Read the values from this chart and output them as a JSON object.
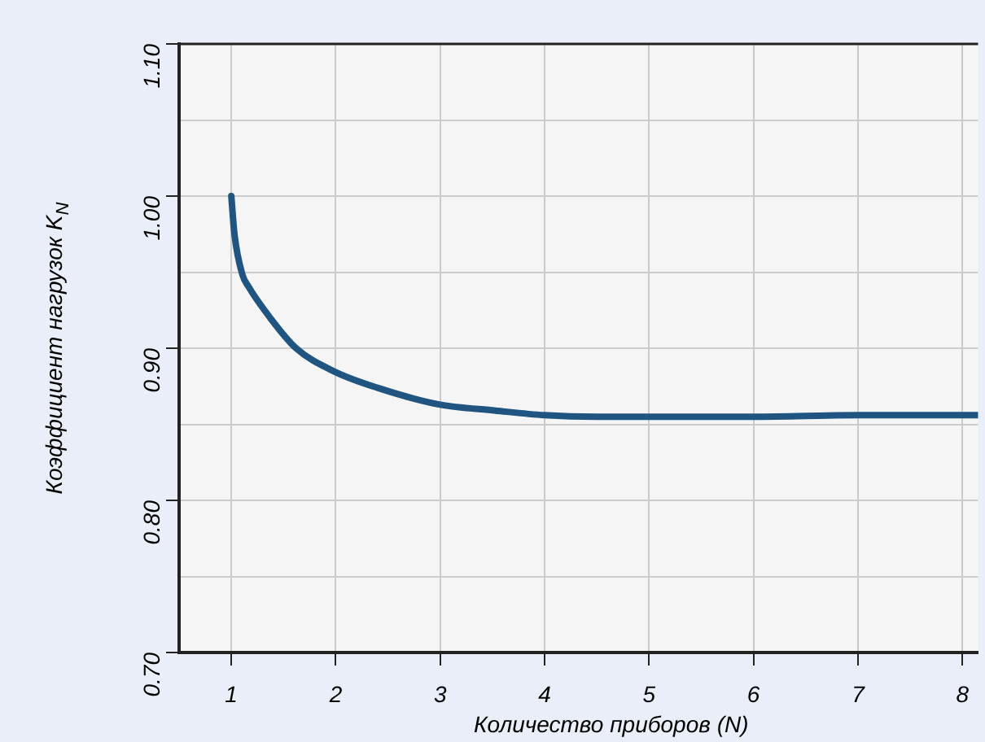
{
  "chart_data": {
    "type": "line",
    "xlabel": "Количество приборов (N)",
    "ylabel": "Коэффициент нагрузок K$_{N}$",
    "x": [
      1,
      1.03,
      1.108,
      1.16,
      1.366,
      1.62,
      1.99,
      2.4,
      2.99,
      3.53,
      4,
      4.5,
      5,
      6,
      7,
      8,
      8.15
    ],
    "series": [
      {
        "color": "#1f5580",
        "values": [
          1.0,
          0.975,
          0.948,
          0.941,
          0.9205,
          0.9,
          0.8846,
          0.874,
          0.863,
          0.859,
          0.856,
          0.855,
          0.855,
          0.855,
          0.856,
          0.856,
          0.856
        ]
      }
    ],
    "xlim": [
      0.5,
      8.15
    ],
    "xticks": [
      1,
      2,
      3,
      4,
      5,
      6,
      7,
      8
    ],
    "ylim": [
      0.7,
      1.1
    ],
    "yticks": [
      {
        "value": 0.7,
        "label": "0.70"
      },
      {
        "value": 0.75,
        "label": null
      },
      {
        "value": 0.8,
        "label": "0.80"
      },
      {
        "value": 0.85,
        "label": null
      },
      {
        "value": 0.9,
        "label": "0.90"
      },
      {
        "value": 0.95,
        "label": null
      },
      {
        "value": 1.0,
        "label": "1.00"
      },
      {
        "value": 1.05,
        "label": null
      },
      {
        "value": 1.1,
        "label": "1.10"
      }
    ],
    "grid": true,
    "legend": false,
    "marker": "none",
    "line_style": "solid"
  }
}
